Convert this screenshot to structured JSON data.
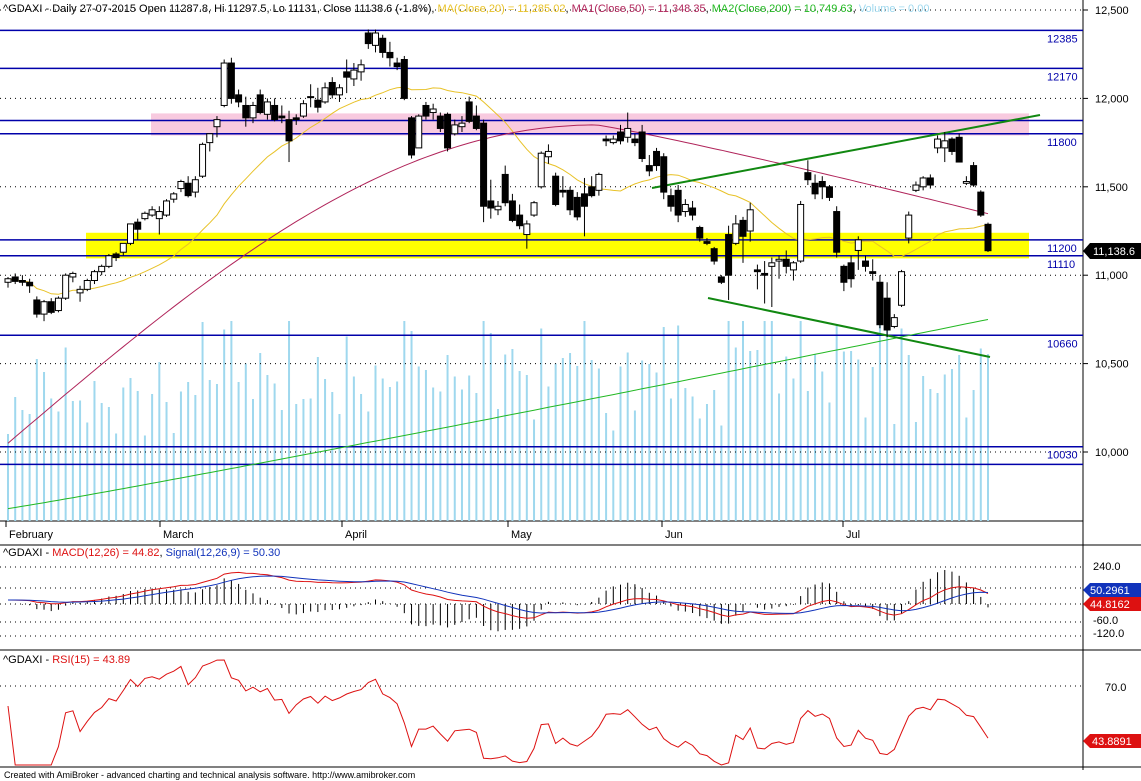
{
  "header": {
    "symbol": "^GDAXI",
    "period": "Daily",
    "date": "27-07-2015",
    "open": "Open 11287.8",
    "high": "Hi 11297.5",
    "low": "Lo 11131",
    "close": "Close 11138.6 (-1.8%)",
    "ma": "MA(Close,20) = 11,285.02",
    "ma1": "MA1(Close,50) = 11,348.35",
    "ma2": "MA2(Close,200) = 10,749.63",
    "volume": "Volume = 0.00"
  },
  "colors": {
    "bg": "#ffffff",
    "candle": "#000000",
    "support": "#0000aa",
    "pink_zone": "#f5b8d4",
    "yellow_zone": "#ffff00",
    "ma20": "#e8c228",
    "ma50": "#b0245a",
    "ma200": "#22b822",
    "trend": "#118811",
    "volume": "#9fd8ee",
    "macd": "#dd1111",
    "signal": "#1133bb",
    "rsi": "#dd1111"
  },
  "price_axis": {
    "ticks": [
      "12,500",
      "12,000",
      "11,500",
      "11,000",
      "10,500",
      "10,000"
    ],
    "current_label": "11,138.6"
  },
  "levels": [
    {
      "label": "12385",
      "value": 12385
    },
    {
      "label": "12170",
      "value": 12170
    },
    {
      "label": "11800",
      "value": 11800
    },
    {
      "label": "",
      "value": 11875
    },
    {
      "label": "11200",
      "value": 11200
    },
    {
      "label": "11110",
      "value": 11110
    },
    {
      "label": "10660",
      "value": 10660
    },
    {
      "label": "10030",
      "value": 10030
    },
    {
      "label": "",
      "value": 9930
    }
  ],
  "zones": [
    {
      "name": "pink",
      "from": 11790,
      "to": 11915
    },
    {
      "name": "yellow",
      "from": 11095,
      "to": 11240
    }
  ],
  "months": [
    "February",
    "March",
    "April",
    "May",
    "Jun",
    "Jul"
  ],
  "macd_panel": {
    "symbol": "^GDAXI",
    "macd_label": "MACD(12,26) = 44.82",
    "signal_label": "Signal(12,26,9) = 50.30",
    "ticks": [
      "240.0",
      "-60.0",
      "-120.0"
    ],
    "signal_box": "50.2961",
    "macd_box": "44.8162"
  },
  "rsi_panel": {
    "symbol": "^GDAXI",
    "rsi_label": "RSI(15) = 43.89",
    "ticks": [
      "70.0"
    ],
    "rsi_box": "43.8891"
  },
  "footer": "Created with AmiBroker - advanced charting and technical analysis software. http://www.amibroker.com",
  "chart_data": {
    "type": "candlestick",
    "title": "^GDAXI - Daily 27-07-2015",
    "ylim": [
      9620,
      12560
    ],
    "ohlc": [
      [
        10960,
        10990,
        10930,
        10980
      ],
      [
        10990,
        11010,
        10950,
        10965
      ],
      [
        10970,
        11000,
        10940,
        10960
      ],
      [
        10960,
        10980,
        10900,
        10940
      ],
      [
        10860,
        10880,
        10760,
        10780
      ],
      [
        10780,
        10860,
        10740,
        10850
      ],
      [
        10850,
        10870,
        10780,
        10790
      ],
      [
        10800,
        10880,
        10790,
        10870
      ],
      [
        10870,
        11010,
        10860,
        11000
      ],
      [
        10990,
        11020,
        10960,
        11010
      ],
      [
        10900,
        10940,
        10850,
        10920
      ],
      [
        10920,
        10980,
        10910,
        10970
      ],
      [
        10970,
        11030,
        10950,
        11020
      ],
      [
        11020,
        11060,
        11000,
        11050
      ],
      [
        11050,
        11120,
        11040,
        11110
      ],
      [
        11120,
        11130,
        11080,
        11100
      ],
      [
        11130,
        11180,
        11110,
        11180
      ],
      [
        11180,
        11290,
        11170,
        11290
      ],
      [
        11300,
        11320,
        11200,
        11260
      ],
      [
        11320,
        11360,
        11310,
        11350
      ],
      [
        11340,
        11390,
        11330,
        11370
      ],
      [
        11320,
        11390,
        11230,
        11360
      ],
      [
        11340,
        11430,
        11330,
        11420
      ],
      [
        11430,
        11470,
        11410,
        11460
      ],
      [
        11490,
        11540,
        11470,
        11530
      ],
      [
        11520,
        11560,
        11440,
        11450
      ],
      [
        11470,
        11560,
        11440,
        11540
      ],
      [
        11560,
        11750,
        11550,
        11740
      ],
      [
        11750,
        11800,
        11700,
        11800
      ],
      [
        11840,
        11900,
        11780,
        11880
      ],
      [
        11960,
        12220,
        11950,
        12200
      ],
      [
        12200,
        12230,
        11970,
        12000
      ],
      [
        12020,
        12050,
        11950,
        11980
      ],
      [
        11960,
        12010,
        11840,
        11890
      ],
      [
        11890,
        11980,
        11860,
        11960
      ],
      [
        12020,
        12050,
        11910,
        11920
      ],
      [
        11910,
        12000,
        11880,
        11980
      ],
      [
        11960,
        12000,
        11870,
        11880
      ],
      [
        11900,
        11960,
        11860,
        11890
      ],
      [
        11880,
        11930,
        11640,
        11760
      ],
      [
        11890,
        11910,
        11850,
        11880
      ],
      [
        11900,
        11990,
        11890,
        11970
      ],
      [
        12010,
        12080,
        11950,
        12010
      ],
      [
        11990,
        12060,
        11920,
        11950
      ],
      [
        11980,
        12090,
        11970,
        12060
      ],
      [
        12090,
        12120,
        12000,
        12020
      ],
      [
        12020,
        12080,
        11980,
        12060
      ],
      [
        12150,
        12220,
        12030,
        12120
      ],
      [
        12110,
        12200,
        12070,
        12160
      ],
      [
        12150,
        12220,
        12100,
        12190
      ],
      [
        12370,
        12390,
        12280,
        12310
      ],
      [
        12300,
        12390,
        12260,
        12370
      ],
      [
        12340,
        12360,
        12230,
        12260
      ],
      [
        12260,
        12320,
        12180,
        12230
      ],
      [
        12200,
        12230,
        12160,
        12180
      ],
      [
        12220,
        12240,
        11990,
        12000
      ],
      [
        11890,
        11900,
        11660,
        11680
      ],
      [
        11720,
        11910,
        11720,
        11900
      ],
      [
        11960,
        11980,
        11880,
        11900
      ],
      [
        11920,
        11970,
        11880,
        11940
      ],
      [
        11900,
        11920,
        11810,
        11830
      ],
      [
        11910,
        11920,
        11700,
        11720
      ],
      [
        11800,
        11880,
        11790,
        11850
      ],
      [
        11840,
        11900,
        11810,
        11860
      ],
      [
        11980,
        12010,
        11860,
        11870
      ],
      [
        11900,
        11960,
        11820,
        11830
      ],
      [
        11860,
        11880,
        11300,
        11390
      ],
      [
        11420,
        11540,
        11320,
        11380
      ],
      [
        11370,
        11420,
        11340,
        11390
      ],
      [
        11570,
        11620,
        11390,
        11410
      ],
      [
        11420,
        11460,
        11300,
        11310
      ],
      [
        11340,
        11400,
        11260,
        11280
      ],
      [
        11230,
        11310,
        11150,
        11290
      ],
      [
        11340,
        11420,
        11330,
        11410
      ],
      [
        11500,
        11700,
        11490,
        11690
      ],
      [
        11670,
        11740,
        11630,
        11700
      ],
      [
        11560,
        11580,
        11390,
        11400
      ],
      [
        11480,
        11560,
        11440,
        11470
      ],
      [
        11480,
        11500,
        11340,
        11370
      ],
      [
        11440,
        11470,
        11310,
        11330
      ],
      [
        11460,
        11550,
        11220,
        11390
      ],
      [
        11500,
        11560,
        11440,
        11450
      ],
      [
        11480,
        11580,
        11450,
        11570
      ],
      [
        11770,
        11790,
        11730,
        11760
      ],
      [
        11750,
        11790,
        11740,
        11770
      ],
      [
        11810,
        11850,
        11740,
        11760
      ],
      [
        11780,
        11920,
        11750,
        11830
      ],
      [
        11770,
        11800,
        11730,
        11750
      ],
      [
        11810,
        11850,
        11640,
        11660
      ],
      [
        11620,
        11680,
        11560,
        11590
      ],
      [
        11700,
        11720,
        11590,
        11620
      ],
      [
        11670,
        11690,
        11430,
        11470
      ],
      [
        11450,
        11490,
        11360,
        11390
      ],
      [
        11480,
        11510,
        11300,
        11340
      ],
      [
        11360,
        11430,
        11330,
        11400
      ],
      [
        11380,
        11420,
        11310,
        11340
      ],
      [
        11270,
        11280,
        11190,
        11210
      ],
      [
        11190,
        11210,
        11170,
        11180
      ],
      [
        11150,
        11160,
        11060,
        11080
      ],
      [
        10990,
        11000,
        10950,
        10960
      ],
      [
        11230,
        11280,
        10860,
        11000
      ],
      [
        11180,
        11340,
        11170,
        11290
      ],
      [
        11310,
        11330,
        11070,
        11220
      ],
      [
        11250,
        11410,
        11190,
        11370
      ],
      [
        11030,
        11060,
        10920,
        11020
      ],
      [
        11010,
        11080,
        10840,
        11000
      ],
      [
        11050,
        11100,
        10820,
        11070
      ],
      [
        11080,
        11110,
        10980,
        11090
      ],
      [
        11090,
        11140,
        11010,
        11050
      ],
      [
        11030,
        11080,
        10970,
        11070
      ],
      [
        11080,
        11420,
        11070,
        11400
      ],
      [
        11580,
        11650,
        11510,
        11540
      ],
      [
        11520,
        11570,
        11430,
        11460
      ],
      [
        11530,
        11560,
        11430,
        11500
      ],
      [
        11500,
        11510,
        11420,
        11440
      ],
      [
        11360,
        11390,
        11100,
        11130
      ],
      [
        11050,
        11060,
        10910,
        10960
      ],
      [
        11070,
        11110,
        10930,
        10980
      ],
      [
        11140,
        11220,
        11030,
        11200
      ],
      [
        11080,
        11110,
        11020,
        11050
      ],
      [
        11020,
        11090,
        10970,
        11010
      ],
      [
        10960,
        11000,
        10700,
        10720
      ],
      [
        10870,
        10960,
        10650,
        10690
      ],
      [
        10710,
        10780,
        10700,
        10760
      ],
      [
        10830,
        11030,
        10820,
        11020
      ],
      [
        11210,
        11360,
        11180,
        11340
      ],
      [
        11480,
        11530,
        11470,
        11510
      ],
      [
        11500,
        11560,
        11480,
        11550
      ],
      [
        11550,
        11570,
        11490,
        11510
      ],
      [
        11720,
        11790,
        11690,
        11770
      ],
      [
        11720,
        11810,
        11640,
        11760
      ],
      [
        11770,
        11780,
        11680,
        11700
      ],
      [
        11780,
        11800,
        11640,
        11640
      ],
      [
        11520,
        11560,
        11510,
        11530
      ],
      [
        11620,
        11640,
        11500,
        11510
      ],
      [
        11470,
        11480,
        11330,
        11340
      ],
      [
        11287.8,
        11297.5,
        11131,
        11138.6
      ]
    ]
  }
}
